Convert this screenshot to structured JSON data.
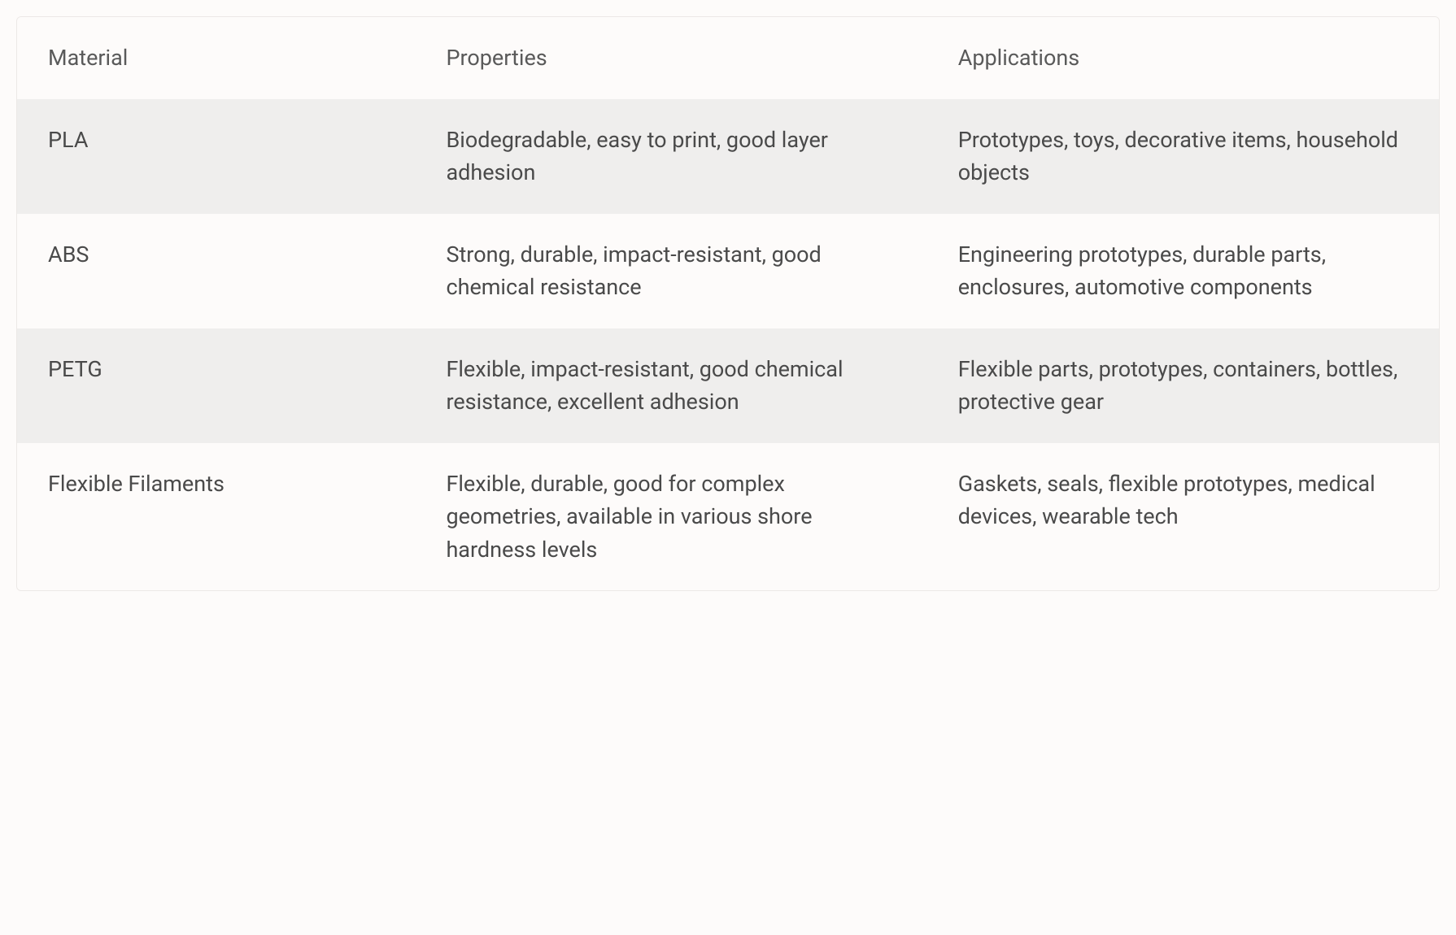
{
  "table": {
    "columns": [
      "Material",
      "Properties",
      "Applications"
    ],
    "rows": [
      {
        "material": "PLA",
        "properties": "Biodegradable, easy to print, good layer adhesion",
        "applications": "Prototypes, toys, decorative items, household objects"
      },
      {
        "material": "ABS",
        "properties": "Strong, durable, impact-resistant, good chemical resistance",
        "applications": "Engineering prototypes, durable parts, enclosures, automotive components"
      },
      {
        "material": "PETG",
        "properties": "Flexible, impact-resistant, good chemical resistance, excellent adhesion",
        "applications": "Flexible parts, prototypes, containers, bottles, protective gear"
      },
      {
        "material": "Flexible Filaments",
        "properties": "Flexible, durable, good for complex geometries, available in various shore hardness levels",
        "applications": "Gaskets, seals, flexible prototypes, medical devices, wearable tech"
      }
    ],
    "styling": {
      "header_bg": "#fdfbfa",
      "row_odd_bg": "#efeeed",
      "row_even_bg": "#fdfbfa",
      "border_color": "#ece8e6",
      "text_color": "#4a4a4a",
      "header_text_color": "#5a5a5a",
      "font_size": 27,
      "cell_padding": "30px 38px",
      "border_radius": 6,
      "column_widths": [
        "28%",
        "36%",
        "36%"
      ]
    }
  }
}
